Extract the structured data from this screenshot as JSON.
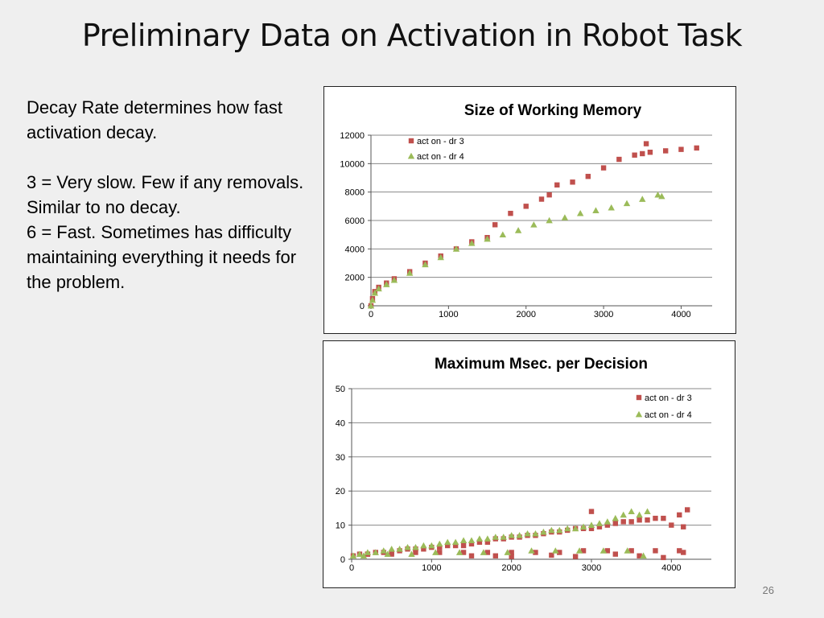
{
  "slide": {
    "title": "Preliminary Data on Activation in Robot Task",
    "body": [
      "Decay Rate determines how fast activation decay.",
      "",
      "3 = Very slow. Few if any removals. Similar to no decay.",
      "6 = Fast. Sometimes has difficulty maintaining everything it needs for the problem."
    ],
    "page_number": "26"
  },
  "chart_data": [
    {
      "type": "scatter",
      "title": "Size of Working Memory",
      "xlabel": "",
      "ylabel": "",
      "xlim": [
        0,
        4400
      ],
      "ylim": [
        0,
        12000
      ],
      "xticks": [
        0,
        1000,
        2000,
        3000,
        4000
      ],
      "yticks": [
        0,
        2000,
        4000,
        6000,
        8000,
        10000,
        12000
      ],
      "grid": "horizontal",
      "legend_position": "top-left",
      "series": [
        {
          "name": "act on - dr 3",
          "marker": "square",
          "color": "#c0504d",
          "x": [
            0,
            20,
            50,
            100,
            200,
            300,
            500,
            700,
            900,
            1100,
            1300,
            1500,
            1600,
            1800,
            2000,
            2200,
            2300,
            2400,
            2600,
            2800,
            3000,
            3200,
            3400,
            3500,
            3550,
            3600,
            3800,
            4000,
            4200
          ],
          "y": [
            0,
            500,
            1000,
            1300,
            1600,
            1900,
            2400,
            3000,
            3500,
            4000,
            4500,
            4800,
            5700,
            6500,
            7000,
            7500,
            7800,
            8500,
            8700,
            9100,
            9700,
            10300,
            10600,
            10700,
            11400,
            10800,
            10900,
            11000,
            11100
          ]
        },
        {
          "name": "act on - dr 4",
          "marker": "triangle",
          "color": "#9bbb59",
          "x": [
            0,
            20,
            50,
            100,
            200,
            300,
            500,
            700,
            900,
            1100,
            1300,
            1500,
            1700,
            1900,
            2100,
            2300,
            2500,
            2700,
            2900,
            3100,
            3300,
            3500,
            3700,
            3750
          ],
          "y": [
            0,
            400,
            900,
            1200,
            1500,
            1800,
            2300,
            2900,
            3400,
            4000,
            4400,
            4700,
            5000,
            5300,
            5700,
            6000,
            6200,
            6500,
            6700,
            6900,
            7200,
            7500,
            7800,
            7700
          ]
        }
      ]
    },
    {
      "type": "scatter",
      "title": "Maximum Msec. per Decision",
      "xlabel": "",
      "ylabel": "",
      "xlim": [
        0,
        4500
      ],
      "ylim": [
        0,
        50
      ],
      "xticks": [
        0,
        1000,
        2000,
        3000,
        4000
      ],
      "yticks": [
        0,
        10,
        20,
        30,
        40,
        50
      ],
      "grid": "horizontal",
      "legend_position": "top-right",
      "series": [
        {
          "name": "act on - dr 3",
          "marker": "square",
          "color": "#c0504d",
          "x": [
            20,
            100,
            200,
            300,
            400,
            500,
            600,
            700,
            800,
            900,
            1000,
            1100,
            1200,
            1300,
            1400,
            1500,
            1600,
            1700,
            1800,
            1900,
            2000,
            2100,
            2200,
            2300,
            2400,
            2500,
            2600,
            2700,
            2800,
            2900,
            3000,
            3000,
            3100,
            3200,
            3300,
            3400,
            3500,
            3600,
            3700,
            3800,
            3900,
            4000,
            4100,
            4150,
            4200,
            200,
            500,
            800,
            1100,
            1400,
            1700,
            2000,
            2300,
            2600,
            2900,
            3200,
            3500,
            3800,
            4100,
            1500,
            1800,
            2000,
            2500,
            2800,
            3300,
            3600,
            3900,
            4150
          ],
          "y": [
            1,
            1.5,
            1.5,
            2,
            2,
            2,
            2.5,
            3,
            3,
            3,
            3.5,
            3.5,
            4,
            4,
            4,
            4.5,
            5,
            5,
            6,
            6,
            6.5,
            6.5,
            7,
            7,
            7.5,
            8,
            8,
            8.5,
            9,
            9,
            9,
            14,
            9.5,
            10,
            10.5,
            11,
            11,
            11.5,
            11.5,
            12,
            12,
            10,
            13,
            9.5,
            14.5,
            1.5,
            1.5,
            2,
            2,
            2,
            2,
            2,
            2,
            2,
            2.5,
            2.5,
            2.5,
            2.5,
            2.5,
            1,
            1,
            0.8,
            1.2,
            0.8,
            1.5,
            1,
            0.5,
            2
          ]
        },
        {
          "name": "act on - dr 4",
          "marker": "triangle",
          "color": "#9bbb59",
          "x": [
            20,
            100,
            200,
            300,
            400,
            500,
            600,
            700,
            800,
            900,
            1000,
            1100,
            1200,
            1300,
            1400,
            1500,
            1600,
            1700,
            1800,
            1900,
            2000,
            2100,
            2200,
            2300,
            2400,
            2500,
            2600,
            2700,
            2800,
            2900,
            3000,
            3100,
            3200,
            3300,
            3400,
            3500,
            3600,
            3700,
            150,
            450,
            750,
            1050,
            1350,
            1650,
            1950,
            2250,
            2550,
            2850,
            3150,
            3450,
            3650
          ],
          "y": [
            1,
            1.5,
            2,
            2,
            2.5,
            3,
            3,
            3.5,
            3.5,
            4,
            4,
            4.5,
            5,
            5,
            5.5,
            5.5,
            6,
            6,
            6.5,
            6.5,
            7,
            7,
            7.5,
            7.5,
            8,
            8.5,
            8.5,
            9,
            9,
            9.5,
            10,
            10.5,
            11,
            12,
            13,
            14,
            13,
            14,
            1,
            1.5,
            1.5,
            2,
            2,
            2,
            2,
            2.5,
            2.5,
            2.5,
            2.5,
            2.5,
            1
          ]
        }
      ]
    }
  ]
}
